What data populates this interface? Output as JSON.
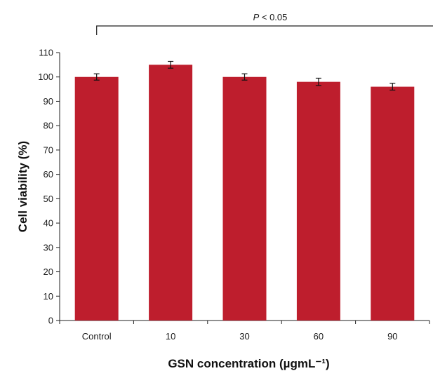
{
  "chart_data": {
    "type": "bar",
    "categories": [
      "Control",
      "10",
      "30",
      "60",
      "90"
    ],
    "values": [
      100,
      105,
      100,
      98,
      96
    ],
    "errors": [
      1.3,
      1.4,
      1.3,
      1.5,
      1.4
    ],
    "xlabel": "GSN concentration (µgmL⁻¹)",
    "ylabel": "Cell viability (%)",
    "ylim": [
      0,
      110
    ],
    "yticks": [
      0,
      10,
      20,
      30,
      40,
      50,
      60,
      70,
      80,
      90,
      100,
      110
    ],
    "grid": false,
    "legend": "none",
    "bar_color": "#BE1E2D",
    "annotation": {
      "p_symbol": "P",
      "p_rest": " < 0.05"
    }
  }
}
